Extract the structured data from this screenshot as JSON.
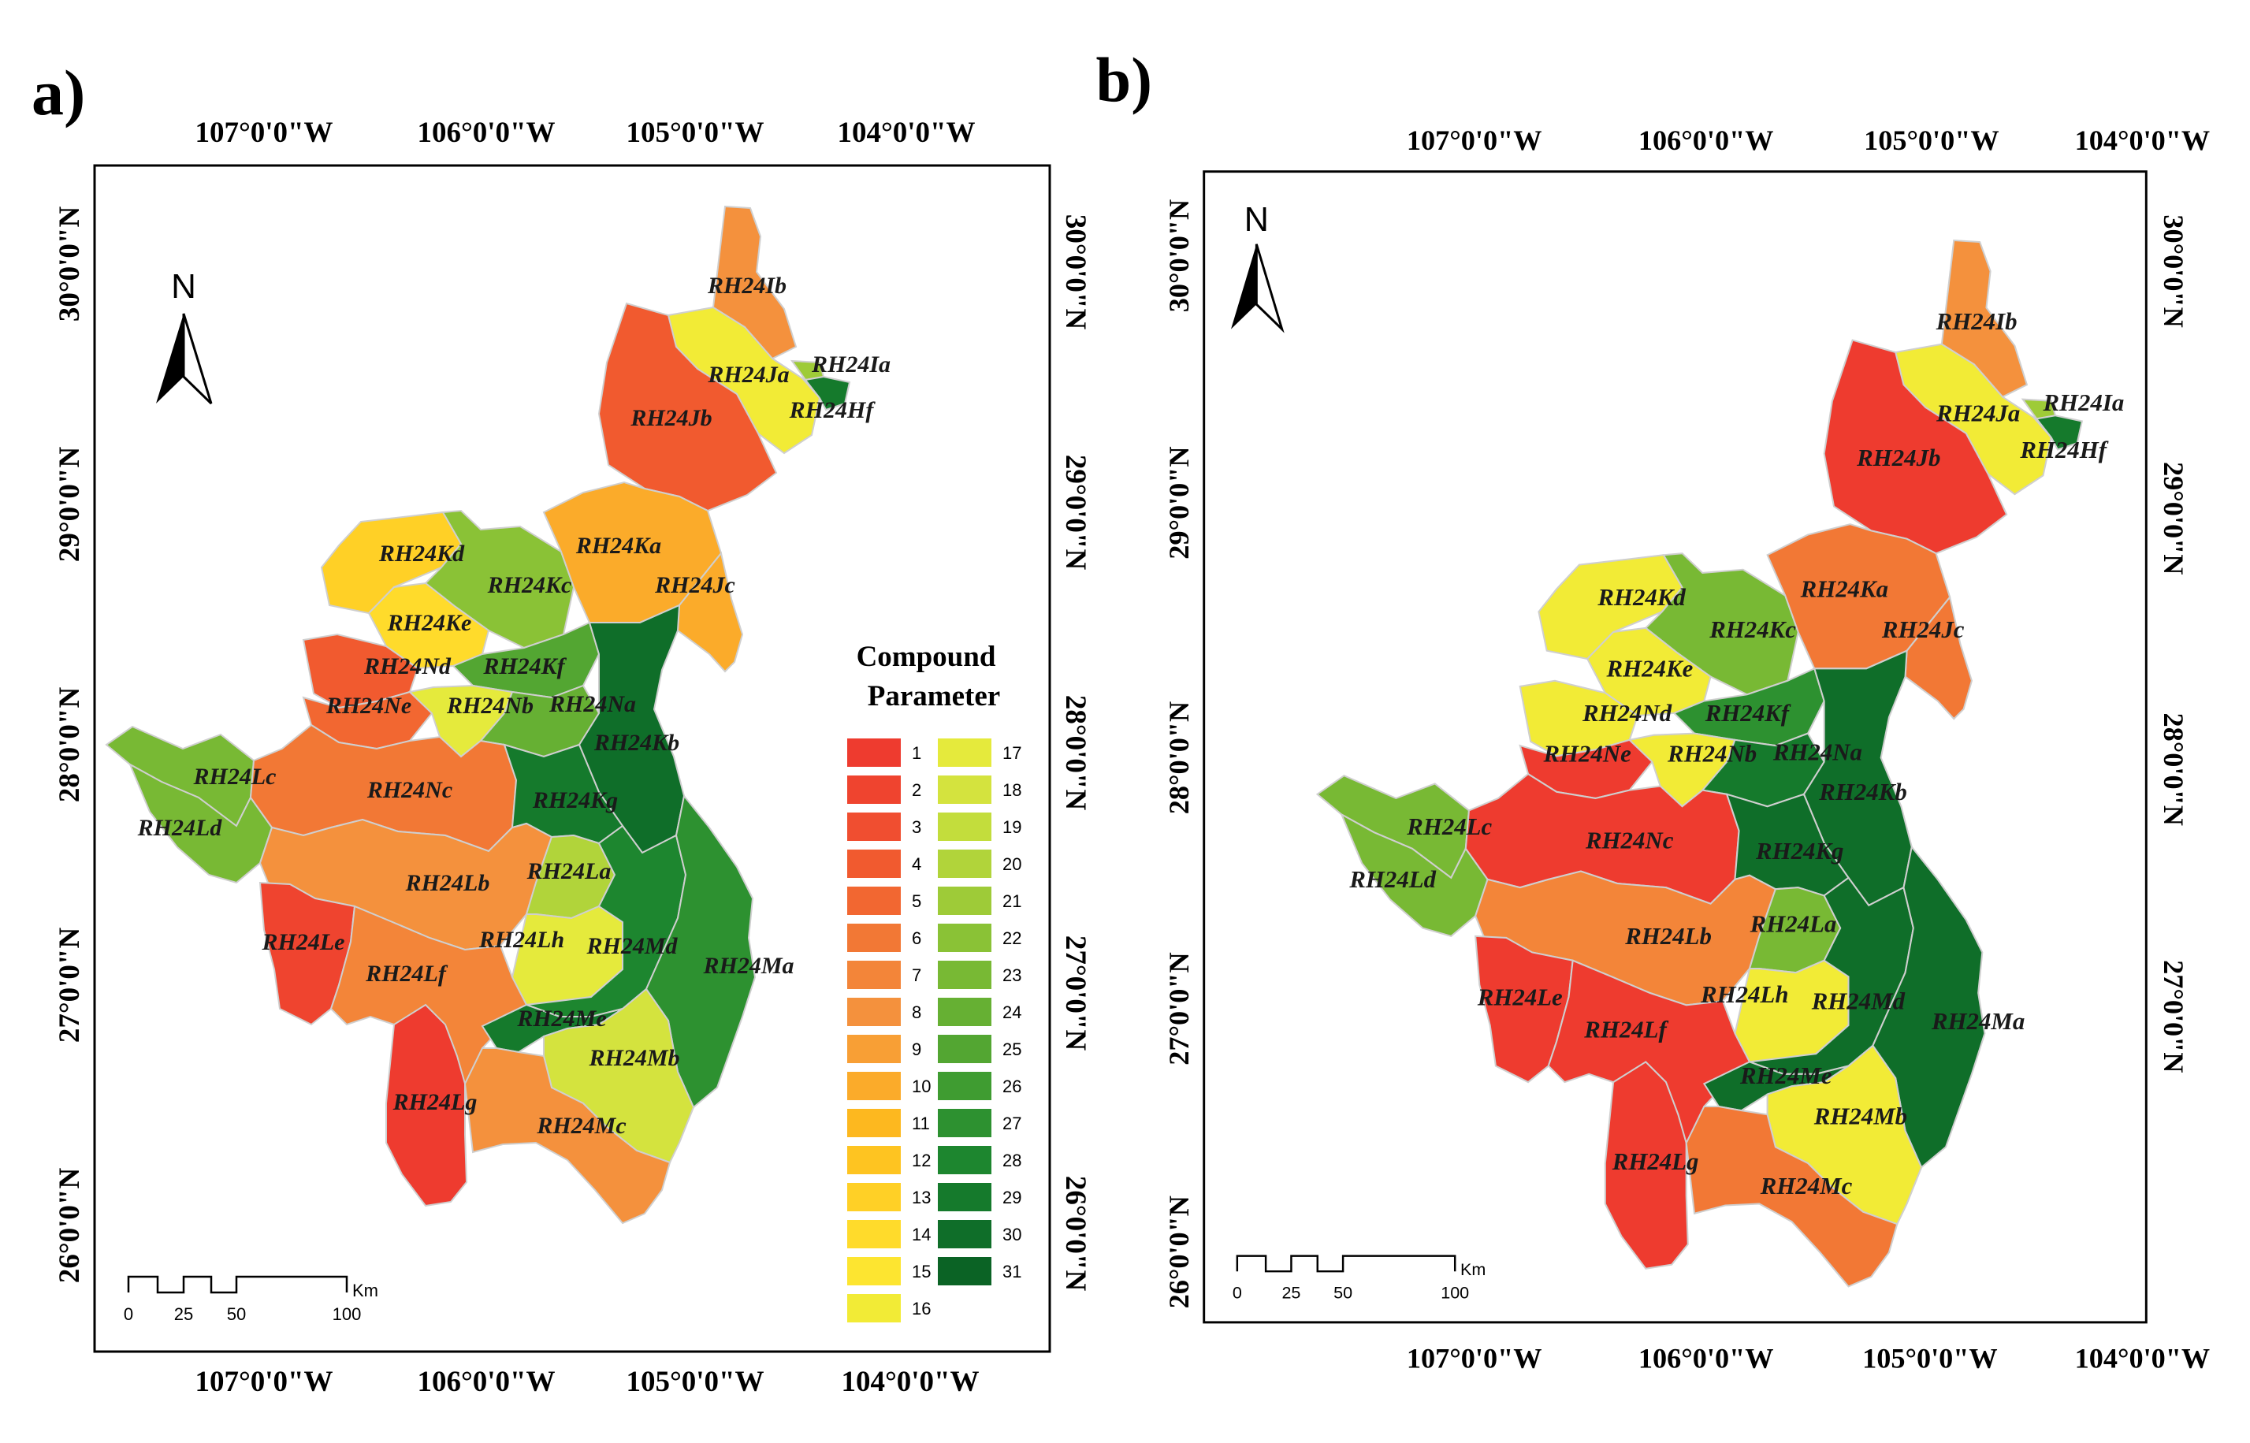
{
  "panels": [
    {
      "letter": "a)",
      "top_lon": [
        "107°0'0\"W",
        "106°0'0\"W",
        "105°0'0\"W",
        "104°0'0\"W"
      ],
      "bottom_lon": [
        "107°0'0\"W",
        "106°0'0\"W",
        "105°0'0\"W",
        "104°0'0\"W"
      ],
      "left_lat": [
        "30°0'0\"N",
        "29°0'0\"N",
        "28°0'0\"N",
        "27°0'0\"N",
        "26°0'0\"N"
      ],
      "right_lat": [
        "30°0'0\"N",
        "29°0'0\"N",
        "28°0'0\"N",
        "27°0'0\"N",
        "26°0'0\"N"
      ],
      "north_label": "N",
      "scale": {
        "ticks": [
          "0",
          "25",
          "50",
          "100"
        ],
        "unit": "Km"
      },
      "regions": [
        {
          "label": "RH24Ib",
          "param": 8
        },
        {
          "label": "RH24Ja",
          "param": 16
        },
        {
          "label": "RH24Ia",
          "param": 21
        },
        {
          "label": "RH24Hf",
          "param": 29
        },
        {
          "label": "RH24Jb",
          "param": 4
        },
        {
          "label": "RH24Kd",
          "param": 13
        },
        {
          "label": "RH24Kc",
          "param": 22
        },
        {
          "label": "RH24Ka",
          "param": 10
        },
        {
          "label": "RH24Jc",
          "param": 10
        },
        {
          "label": "RH24Ke",
          "param": 14
        },
        {
          "label": "RH24Nd",
          "param": 4
        },
        {
          "label": "RH24Kf",
          "param": 25
        },
        {
          "label": "RH24Ne",
          "param": 5
        },
        {
          "label": "RH24Nb",
          "param": 17
        },
        {
          "label": "RH24Na",
          "param": 24
        },
        {
          "label": "RH24Kb",
          "param": 30
        },
        {
          "label": "RH24Lc",
          "param": 23
        },
        {
          "label": "RH24Ld",
          "param": 23
        },
        {
          "label": "RH24Nc",
          "param": 6
        },
        {
          "label": "RH24Kg",
          "param": 29
        },
        {
          "label": "RH24Lb",
          "param": 8
        },
        {
          "label": "RH24La",
          "param": 20
        },
        {
          "label": "RH24Le",
          "param": 2
        },
        {
          "label": "RH24Lh",
          "param": 17
        },
        {
          "label": "RH24Md",
          "param": 28
        },
        {
          "label": "RH24Ma",
          "param": 27
        },
        {
          "label": "RH24Lf",
          "param": 7
        },
        {
          "label": "RH24Me",
          "param": 29
        },
        {
          "label": "RH24Mb",
          "param": 18
        },
        {
          "label": "RH24Lg",
          "param": 1
        },
        {
          "label": "RH24Mc",
          "param": 8
        }
      ]
    },
    {
      "letter": "b)",
      "top_lon": [
        "107°0'0\"W",
        "106°0'0\"W",
        "105°0'0\"W",
        "104°0'0\"W"
      ],
      "bottom_lon": [
        "107°0'0\"W",
        "106°0'0\"W",
        "105°0'0\"W",
        "104°0'0\"W"
      ],
      "left_lat": [
        "30°0'0\"N",
        "29°0'0\"N",
        "28°0'0\"N",
        "27°0'0\"N",
        "26°0'0\"N"
      ],
      "right_lat": [
        "30°0'0\"N",
        "29°0'0\"N",
        "28°0'0\"N",
        "27°0'0\"N"
      ],
      "north_label": "N",
      "scale": {
        "ticks": [
          "0",
          "25",
          "50",
          "100"
        ],
        "unit": "Km"
      },
      "regions": [
        {
          "label": "RH24Ib",
          "param": 8
        },
        {
          "label": "RH24Ja",
          "param": 16
        },
        {
          "label": "RH24Ia",
          "param": 21
        },
        {
          "label": "RH24Hf",
          "param": 29
        },
        {
          "label": "RH24Jb",
          "param": 1
        },
        {
          "label": "RH24Kd",
          "param": 16
        },
        {
          "label": "RH24Kc",
          "param": 23
        },
        {
          "label": "RH24Ka",
          "param": 6
        },
        {
          "label": "RH24Jc",
          "param": 6
        },
        {
          "label": "RH24Ke",
          "param": 16
        },
        {
          "label": "RH24Nd",
          "param": 16
        },
        {
          "label": "RH24Kf",
          "param": 27
        },
        {
          "label": "RH24Ne",
          "param": 1
        },
        {
          "label": "RH24Nb",
          "param": 16
        },
        {
          "label": "RH24Na",
          "param": 29
        },
        {
          "label": "RH24Kb",
          "param": 30
        },
        {
          "label": "RH24Lc",
          "param": 23
        },
        {
          "label": "RH24Ld",
          "param": 23
        },
        {
          "label": "RH24Nc",
          "param": 1
        },
        {
          "label": "RH24Kg",
          "param": 30
        },
        {
          "label": "RH24Lb",
          "param": 7
        },
        {
          "label": "RH24La",
          "param": 23
        },
        {
          "label": "RH24Le",
          "param": 1
        },
        {
          "label": "RH24Lh",
          "param": 16
        },
        {
          "label": "RH24Md",
          "param": 30
        },
        {
          "label": "RH24Ma",
          "param": 30
        },
        {
          "label": "RH24Lf",
          "param": 1
        },
        {
          "label": "RH24Me",
          "param": 30
        },
        {
          "label": "RH24Mb",
          "param": 16
        },
        {
          "label": "RH24Lg",
          "param": 1
        },
        {
          "label": "RH24Mc",
          "param": 6
        }
      ]
    }
  ],
  "legend": {
    "title_line1": "Compound",
    "title_line2": "Parameter",
    "entries": [
      {
        "value": "1",
        "color": "#ee3b2f"
      },
      {
        "value": "2",
        "color": "#ef442f"
      },
      {
        "value": "3",
        "color": "#f04e30"
      },
      {
        "value": "4",
        "color": "#f15a2f"
      },
      {
        "value": "5",
        "color": "#f26731"
      },
      {
        "value": "6",
        "color": "#f27835"
      },
      {
        "value": "7",
        "color": "#f38539"
      },
      {
        "value": "8",
        "color": "#f4913d"
      },
      {
        "value": "9",
        "color": "#f89f35"
      },
      {
        "value": "10",
        "color": "#fbab2a"
      },
      {
        "value": "11",
        "color": "#fdb81f"
      },
      {
        "value": "12",
        "color": "#fec421"
      },
      {
        "value": "13",
        "color": "#ffd026"
      },
      {
        "value": "14",
        "color": "#ffdb2b"
      },
      {
        "value": "15",
        "color": "#fde530"
      },
      {
        "value": "16",
        "color": "#f2eb36"
      },
      {
        "value": "17",
        "color": "#e5ea3c"
      },
      {
        "value": "18",
        "color": "#d4e33e"
      },
      {
        "value": "19",
        "color": "#c3dd3c"
      },
      {
        "value": "20",
        "color": "#b1d43a"
      },
      {
        "value": "21",
        "color": "#9ecb38"
      },
      {
        "value": "22",
        "color": "#8ac236"
      },
      {
        "value": "23",
        "color": "#78b934"
      },
      {
        "value": "24",
        "color": "#66b033"
      },
      {
        "value": "25",
        "color": "#53a632"
      },
      {
        "value": "26",
        "color": "#3f9c31"
      },
      {
        "value": "27",
        "color": "#2d9130"
      },
      {
        "value": "28",
        "color": "#1d862f"
      },
      {
        "value": "29",
        "color": "#157a2c"
      },
      {
        "value": "30",
        "color": "#0f6e29"
      },
      {
        "value": "31",
        "color": "#0b6325"
      }
    ]
  }
}
